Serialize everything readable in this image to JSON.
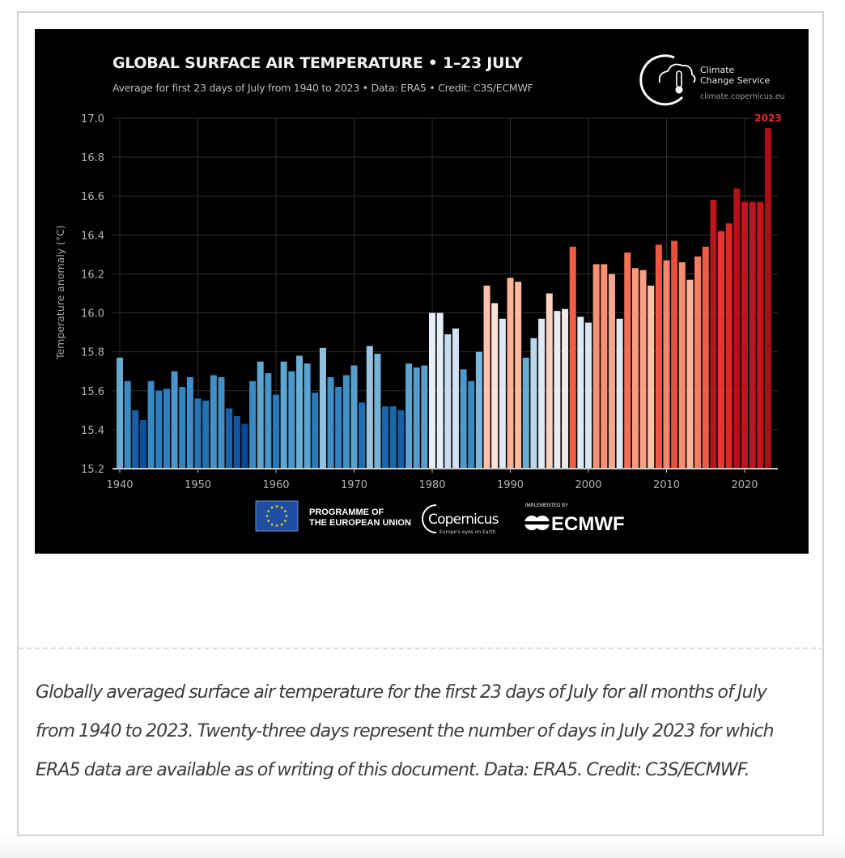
{
  "chart_data": {
    "type": "bar",
    "title": "GLOBAL SURFACE AIR TEMPERATURE • 1–23 JULY",
    "subtitle": "Average for first 23 days of July from 1940 to 2023 • Data: ERA5 • Credit: C3S/ECMWF",
    "xlabel": "",
    "ylabel": "Temperature anomaly (°C)",
    "ylim": [
      15.2,
      17.0
    ],
    "yticks": [
      "15.2",
      "15.4",
      "15.6",
      "15.8",
      "16.0",
      "16.2",
      "16.4",
      "16.6",
      "16.8",
      "17.0"
    ],
    "xticks": [
      "1940",
      "1950",
      "1960",
      "1970",
      "1980",
      "1990",
      "2000",
      "2010",
      "2020"
    ],
    "grid": true,
    "highlight_label": "2023",
    "highlight_color": "#e8262b",
    "x_start": 1940,
    "values": [
      15.77,
      15.65,
      15.5,
      15.45,
      15.65,
      15.6,
      15.61,
      15.7,
      15.62,
      15.67,
      15.56,
      15.55,
      15.68,
      15.67,
      15.51,
      15.47,
      15.43,
      15.65,
      15.75,
      15.69,
      15.58,
      15.75,
      15.7,
      15.78,
      15.74,
      15.59,
      15.82,
      15.67,
      15.62,
      15.68,
      15.73,
      15.54,
      15.83,
      15.79,
      15.52,
      15.52,
      15.5,
      15.74,
      15.72,
      15.73,
      16.0,
      16.0,
      15.89,
      15.92,
      15.71,
      15.65,
      15.8,
      16.14,
      16.05,
      15.97,
      16.18,
      16.16,
      15.77,
      15.87,
      15.97,
      16.1,
      16.01,
      16.02,
      16.34,
      15.98,
      15.95,
      16.25,
      16.25,
      16.2,
      15.97,
      16.31,
      16.23,
      16.22,
      16.14,
      16.35,
      16.27,
      16.37,
      16.26,
      16.17,
      16.29,
      16.34,
      16.58,
      16.42,
      16.46,
      16.64,
      16.57,
      16.57,
      16.57,
      16.95
    ]
  },
  "logo_c3s": {
    "line1": "Climate",
    "line2": "Change Service",
    "url": "climate.copernicus.eu"
  },
  "footer_logos": {
    "eu_line1": "PROGRAMME OF",
    "eu_line2": "THE EUROPEAN UNION",
    "copernicus": "Copernicus",
    "copernicus_tagline": "Europe's eyes on Earth",
    "implemented_by": "IMPLEMENTED BY",
    "ecmwf": "ECMWF"
  },
  "caption": "Globally averaged surface air temperature for the first 23 days of July for all months of July from 1940 to 2023. Twenty-three days represent the number of days in July 2023 for which ERA5 data are available as of writing of this document. Data: ERA5. Credit: C3S/ECMWF."
}
